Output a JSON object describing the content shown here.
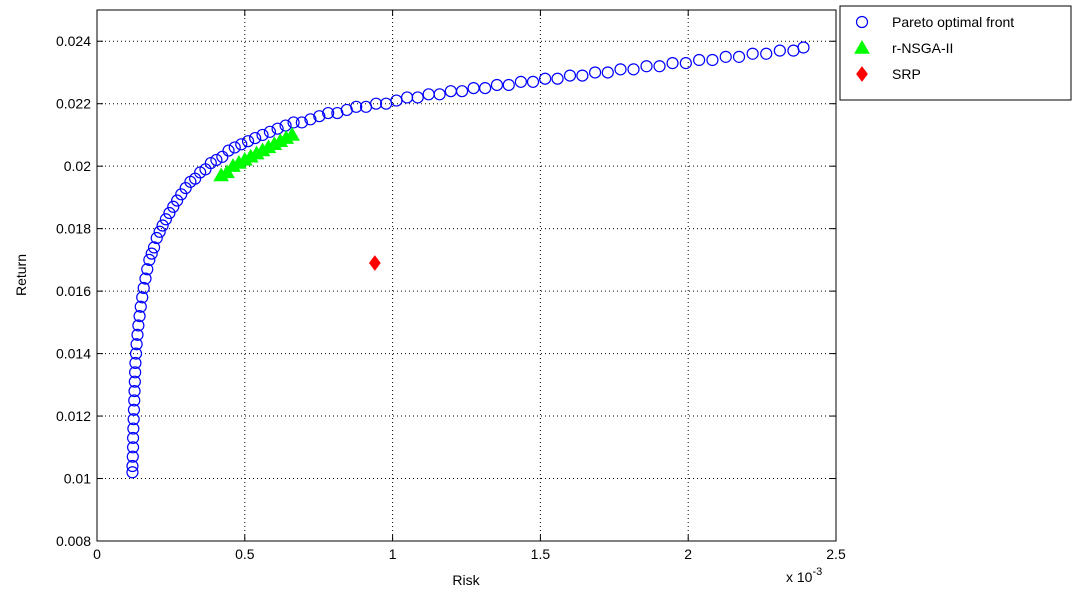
{
  "chart_data": {
    "type": "scatter",
    "xlabel": "Risk",
    "ylabel": "Return",
    "x_multiplier_label": "x 10",
    "x_multiplier_exponent": "-3",
    "xlim": [
      0,
      2.5
    ],
    "ylim": [
      0.008,
      0.025
    ],
    "x_ticks": [
      0,
      0.5,
      1,
      1.5,
      2,
      2.5
    ],
    "x_tick_labels": [
      "0",
      "0.5",
      "1",
      "1.5",
      "2",
      "2.5"
    ],
    "y_ticks": [
      0.008,
      0.01,
      0.012,
      0.014,
      0.016,
      0.018,
      0.02,
      0.022,
      0.024
    ],
    "y_tick_labels": [
      "0.008",
      "0.01",
      "0.012",
      "0.014",
      "0.016",
      "0.018",
      "0.02",
      "0.022",
      "0.024"
    ],
    "grid": true,
    "legend_position": "outside-top-right",
    "series": [
      {
        "name": "Pareto optimal front",
        "marker": "circle-open",
        "color": "#0000ff",
        "x": [
          0.12,
          0.12,
          0.121,
          0.122,
          0.122,
          0.123,
          0.124,
          0.125,
          0.126,
          0.127,
          0.128,
          0.129,
          0.13,
          0.132,
          0.134,
          0.137,
          0.14,
          0.144,
          0.148,
          0.153,
          0.158,
          0.164,
          0.17,
          0.177,
          0.185,
          0.193,
          0.202,
          0.212,
          0.222,
          0.233,
          0.245,
          0.258,
          0.271,
          0.285,
          0.3,
          0.316,
          0.332,
          0.349,
          0.367,
          0.385,
          0.404,
          0.424,
          0.445,
          0.466,
          0.488,
          0.511,
          0.535,
          0.56,
          0.585,
          0.611,
          0.638,
          0.665,
          0.693,
          0.722,
          0.752,
          0.782,
          0.813,
          0.845,
          0.877,
          0.91,
          0.944,
          0.978,
          1.013,
          1.049,
          1.085,
          1.122,
          1.159,
          1.197,
          1.235,
          1.274,
          1.313,
          1.353,
          1.393,
          1.434,
          1.475,
          1.516,
          1.558,
          1.6,
          1.642,
          1.685,
          1.728,
          1.771,
          1.815,
          1.859,
          1.903,
          1.947,
          1.992,
          2.037,
          2.082,
          2.127,
          2.172,
          2.218,
          2.264,
          2.31,
          2.356,
          2.39
        ],
        "y": [
          0.0102,
          0.0104,
          0.0107,
          0.011,
          0.0113,
          0.0116,
          0.0119,
          0.0122,
          0.0125,
          0.0128,
          0.0131,
          0.0134,
          0.0137,
          0.014,
          0.0143,
          0.0146,
          0.0149,
          0.0152,
          0.0155,
          0.0158,
          0.0161,
          0.0164,
          0.0167,
          0.017,
          0.0172,
          0.0174,
          0.0177,
          0.0179,
          0.0181,
          0.0183,
          0.0185,
          0.0187,
          0.0189,
          0.0191,
          0.0193,
          0.0195,
          0.0196,
          0.0198,
          0.0199,
          0.0201,
          0.0202,
          0.0203,
          0.0205,
          0.0206,
          0.0207,
          0.0208,
          0.0209,
          0.021,
          0.0211,
          0.0212,
          0.0213,
          0.0214,
          0.0214,
          0.0215,
          0.0216,
          0.0217,
          0.0217,
          0.0218,
          0.0219,
          0.0219,
          0.022,
          0.022,
          0.0221,
          0.0222,
          0.0222,
          0.0223,
          0.0223,
          0.0224,
          0.0224,
          0.0225,
          0.0225,
          0.0226,
          0.0226,
          0.0227,
          0.0227,
          0.0228,
          0.0228,
          0.0229,
          0.0229,
          0.023,
          0.023,
          0.0231,
          0.0231,
          0.0232,
          0.0232,
          0.0233,
          0.0233,
          0.0234,
          0.0234,
          0.0235,
          0.0235,
          0.0236,
          0.0236,
          0.0237,
          0.0237,
          0.0238
        ]
      },
      {
        "name": "r-NSGA-II",
        "marker": "triangle-filled",
        "color": "#00ff00",
        "x": [
          0.42,
          0.44,
          0.46,
          0.48,
          0.5,
          0.52,
          0.54,
          0.56,
          0.58,
          0.6,
          0.62,
          0.64,
          0.66
        ],
        "y": [
          0.0197,
          0.0198,
          0.02,
          0.0201,
          0.0202,
          0.0203,
          0.0204,
          0.0205,
          0.0206,
          0.0207,
          0.0208,
          0.0209,
          0.021
        ]
      },
      {
        "name": "SRP",
        "marker": "diamond-filled",
        "color": "#ff0000",
        "x": [
          0.94
        ],
        "y": [
          0.0169
        ]
      }
    ]
  }
}
